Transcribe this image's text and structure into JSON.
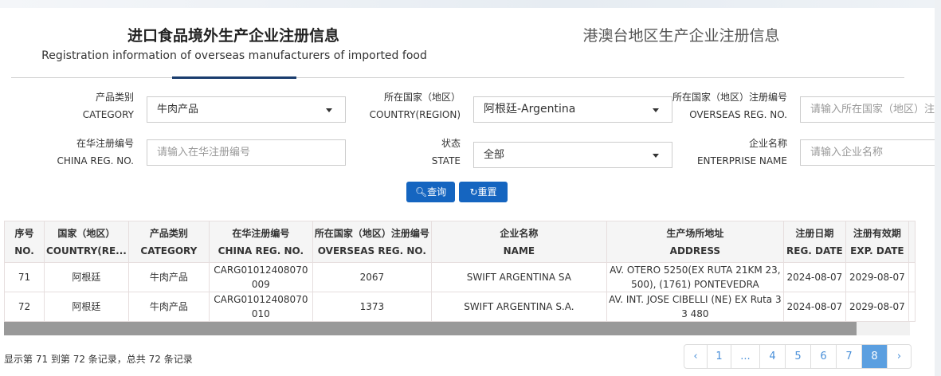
{
  "tabs": [
    {
      "title": "进口食品境外生产企业注册信息",
      "subtitle": "Registration information of overseas manufacturers of imported food",
      "active": true
    },
    {
      "title": "港澳台地区生产企业注册信息",
      "active": false
    }
  ],
  "filters": {
    "category": {
      "label_cn": "产品类别",
      "label_en": "CATEGORY",
      "value": "牛肉产品"
    },
    "country": {
      "label_cn": "所在国家（地区）",
      "label_en": "COUNTRY(REGION)",
      "value": "阿根廷-Argentina"
    },
    "overseas_reg": {
      "label_cn": "所在国家（地区）注册编号",
      "label_en": "OVERSEAS REG. NO.",
      "placeholder": "请输入所在国家（地区）注册编号"
    },
    "china_reg": {
      "label_cn": "在华注册编号",
      "label_en": "CHINA REG. NO.",
      "placeholder": "请输入在华注册编号"
    },
    "state": {
      "label_cn": "状态",
      "label_en": "STATE",
      "value": "全部"
    },
    "enterprise": {
      "label_cn": "企业名称",
      "label_en": "ENTERPRISE NAME",
      "placeholder": "请输入企业名称"
    }
  },
  "buttons": {
    "search": "查询",
    "reset": "重置"
  },
  "table": {
    "columns": [
      {
        "cn": "序号",
        "en": "NO."
      },
      {
        "cn": "国家（地区）",
        "en": "COUNTRY(RE..."
      },
      {
        "cn": "产品类别",
        "en": "CATEGORY"
      },
      {
        "cn": "在华注册编号",
        "en": "CHINA REG. NO."
      },
      {
        "cn": "所在国家（地区）注册编号",
        "en": "OVERSEAS REG. NO."
      },
      {
        "cn": "企业名称",
        "en": "NAME"
      },
      {
        "cn": "生产场所地址",
        "en": "ADDRESS"
      },
      {
        "cn": "注册日期",
        "en": "REG. DATE"
      },
      {
        "cn": "注册有效期",
        "en": "EXP. DATE"
      }
    ],
    "rows": [
      [
        "71",
        "阿根廷",
        "牛肉产品",
        "CARG01012408070009",
        "2067",
        "SWIFT ARGENTINA SA",
        "AV. OTERO 5250(EX RUTA 21KM 23,500), (1761) PONTEVEDRA",
        "2024-08-07",
        "2029-08-07"
      ],
      [
        "72",
        "阿根廷",
        "牛肉产品",
        "CARG01012408070010",
        "1373",
        "SWIFT ARGENTINA S.A.",
        "AV. INT. JOSE CIBELLI (NE) EX Ruta 33 480",
        "2024-08-07",
        "2029-08-07"
      ]
    ]
  },
  "footer": {
    "info": "显示第 71 到第 72 条记录，总共 72 条记录"
  },
  "pagination": {
    "items": [
      "‹",
      "1",
      "...",
      "4",
      "5",
      "6",
      "7",
      "8",
      "›"
    ],
    "active": "8"
  },
  "colors": {
    "primary": "#1565c0",
    "tab_underline": "#1a3d6e",
    "page_active": "#5b9fe0"
  }
}
